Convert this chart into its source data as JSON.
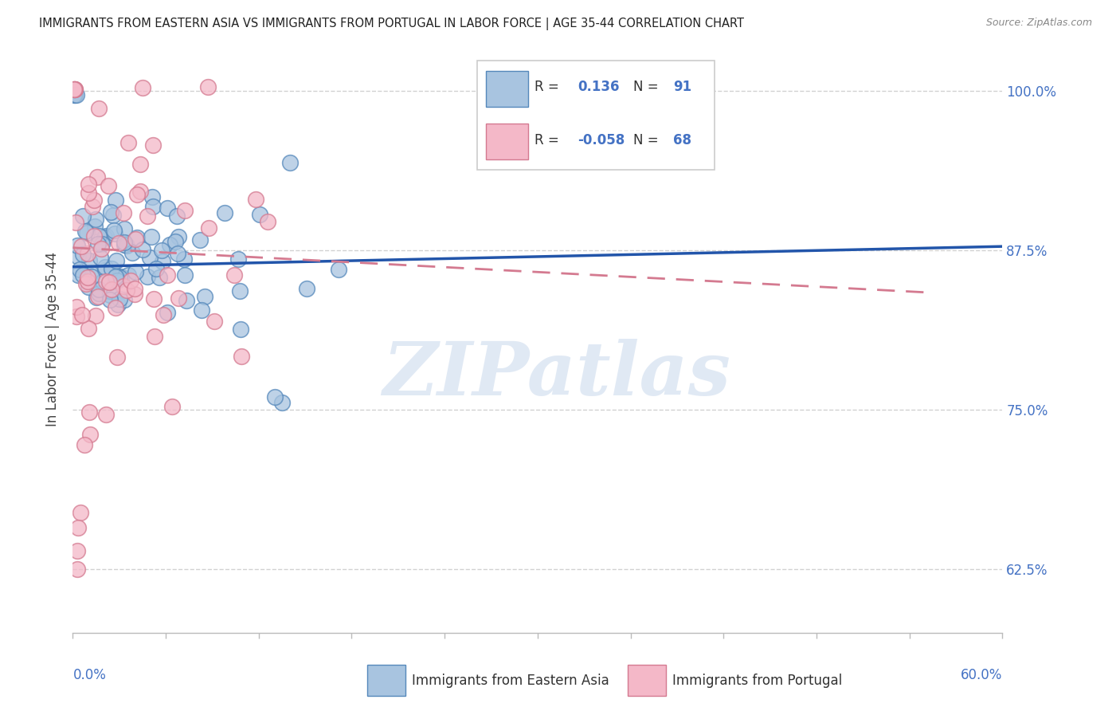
{
  "title": "IMMIGRANTS FROM EASTERN ASIA VS IMMIGRANTS FROM PORTUGAL IN LABOR FORCE | AGE 35-44 CORRELATION CHART",
  "source": "Source: ZipAtlas.com",
  "ylabel": "In Labor Force | Age 35-44",
  "yticks": [
    "62.5%",
    "75.0%",
    "87.5%",
    "100.0%"
  ],
  "ytick_vals": [
    0.625,
    0.75,
    0.875,
    1.0
  ],
  "xlim": [
    0.0,
    0.6
  ],
  "ylim": [
    0.575,
    1.035
  ],
  "legend_blue_r": "0.136",
  "legend_blue_n": "91",
  "legend_pink_r": "-0.058",
  "legend_pink_n": "68",
  "legend_label_blue": "Immigrants from Eastern Asia",
  "legend_label_pink": "Immigrants from Portugal",
  "blue_fill": "#a8c4e0",
  "blue_edge": "#5588bb",
  "pink_fill": "#f4b8c8",
  "pink_edge": "#d47a90",
  "blue_line": "#2255aa",
  "pink_line": "#d47a90",
  "title_color": "#222222",
  "axis_color": "#4472c4",
  "grid_color": "#cccccc",
  "watermark": "ZIPatlas",
  "watermark_color": "#c8d8ec"
}
